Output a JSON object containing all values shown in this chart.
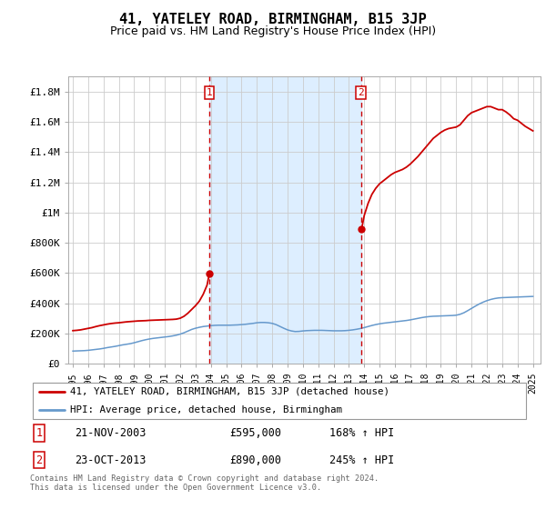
{
  "title": "41, YATELEY ROAD, BIRMINGHAM, B15 3JP",
  "subtitle": "Price paid vs. HM Land Registry's House Price Index (HPI)",
  "title_fontsize": 11,
  "subtitle_fontsize": 9,
  "bg_color": "#ffffff",
  "plot_bg_color": "#ffffff",
  "grid_color": "#cccccc",
  "shade_color": "#ddeeff",
  "red_line_color": "#cc0000",
  "blue_line_color": "#6699cc",
  "vline_color": "#cc0000",
  "ylim": [
    0,
    1900000
  ],
  "yticks": [
    0,
    200000,
    400000,
    600000,
    800000,
    1000000,
    1200000,
    1400000,
    1600000,
    1800000
  ],
  "ytick_labels": [
    "£0",
    "£200K",
    "£400K",
    "£600K",
    "£800K",
    "£1M",
    "£1.2M",
    "£1.4M",
    "£1.6M",
    "£1.8M"
  ],
  "xlim_start": 1994.7,
  "xlim_end": 2025.5,
  "xtick_years": [
    1995,
    1996,
    1997,
    1998,
    1999,
    2000,
    2001,
    2002,
    2003,
    2004,
    2005,
    2006,
    2007,
    2008,
    2009,
    2010,
    2011,
    2012,
    2013,
    2014,
    2015,
    2016,
    2017,
    2018,
    2019,
    2020,
    2021,
    2022,
    2023,
    2024,
    2025
  ],
  "vline1_x": 2003.9,
  "vline2_x": 2013.8,
  "marker1_label": "1",
  "marker2_label": "2",
  "legend_entry1": "41, YATELEY ROAD, BIRMINGHAM, B15 3JP (detached house)",
  "legend_entry2": "HPI: Average price, detached house, Birmingham",
  "table_row1": [
    "1",
    "21-NOV-2003",
    "£595,000",
    "168% ↑ HPI"
  ],
  "table_row2": [
    "2",
    "23-OCT-2013",
    "£890,000",
    "245% ↑ HPI"
  ],
  "footer": "Contains HM Land Registry data © Crown copyright and database right 2024.\nThis data is licensed under the Open Government Licence v3.0.",
  "hpi_x": [
    1995.0,
    1995.25,
    1995.5,
    1995.75,
    1996.0,
    1996.25,
    1996.5,
    1996.75,
    1997.0,
    1997.25,
    1997.5,
    1997.75,
    1998.0,
    1998.25,
    1998.5,
    1998.75,
    1999.0,
    1999.25,
    1999.5,
    1999.75,
    2000.0,
    2000.25,
    2000.5,
    2000.75,
    2001.0,
    2001.25,
    2001.5,
    2001.75,
    2002.0,
    2002.25,
    2002.5,
    2002.75,
    2003.0,
    2003.25,
    2003.5,
    2003.75,
    2004.0,
    2004.25,
    2004.5,
    2004.75,
    2005.0,
    2005.25,
    2005.5,
    2005.75,
    2006.0,
    2006.25,
    2006.5,
    2006.75,
    2007.0,
    2007.25,
    2007.5,
    2007.75,
    2008.0,
    2008.25,
    2008.5,
    2008.75,
    2009.0,
    2009.25,
    2009.5,
    2009.75,
    2010.0,
    2010.25,
    2010.5,
    2010.75,
    2011.0,
    2011.25,
    2011.5,
    2011.75,
    2012.0,
    2012.25,
    2012.5,
    2012.75,
    2013.0,
    2013.25,
    2013.5,
    2013.75,
    2014.0,
    2014.25,
    2014.5,
    2014.75,
    2015.0,
    2015.25,
    2015.5,
    2015.75,
    2016.0,
    2016.25,
    2016.5,
    2016.75,
    2017.0,
    2017.25,
    2017.5,
    2017.75,
    2018.0,
    2018.25,
    2018.5,
    2018.75,
    2019.0,
    2019.25,
    2019.5,
    2019.75,
    2020.0,
    2020.25,
    2020.5,
    2020.75,
    2021.0,
    2021.25,
    2021.5,
    2021.75,
    2022.0,
    2022.25,
    2022.5,
    2022.75,
    2023.0,
    2023.25,
    2023.5,
    2023.75,
    2024.0,
    2024.25,
    2024.5,
    2024.75,
    2025.0
  ],
  "hpi_y": [
    85000,
    86000,
    87000,
    88000,
    90000,
    93000,
    96000,
    99000,
    103000,
    108000,
    112000,
    116000,
    121000,
    126000,
    130000,
    134000,
    140000,
    147000,
    154000,
    160000,
    165000,
    169000,
    172000,
    175000,
    178000,
    181000,
    185000,
    190000,
    197000,
    206000,
    217000,
    228000,
    236000,
    242000,
    247000,
    250000,
    253000,
    255000,
    256000,
    256000,
    256000,
    256000,
    257000,
    258000,
    260000,
    262000,
    265000,
    268000,
    272000,
    274000,
    274000,
    272000,
    268000,
    260000,
    248000,
    236000,
    225000,
    218000,
    214000,
    215000,
    218000,
    220000,
    221000,
    222000,
    222000,
    222000,
    221000,
    220000,
    219000,
    219000,
    219000,
    220000,
    222000,
    225000,
    229000,
    234000,
    240000,
    247000,
    254000,
    260000,
    265000,
    269000,
    272000,
    275000,
    278000,
    281000,
    284000,
    287000,
    291000,
    296000,
    301000,
    306000,
    310000,
    313000,
    315000,
    316000,
    317000,
    318000,
    319000,
    320000,
    322000,
    328000,
    338000,
    352000,
    367000,
    382000,
    396000,
    408000,
    418000,
    426000,
    432000,
    436000,
    438000,
    439000,
    440000,
    441000,
    442000,
    443000,
    444000,
    445000,
    446000
  ],
  "red_seg1_x": [
    1995.0,
    1995.25,
    1995.5,
    1995.75,
    1996.0,
    1996.25,
    1996.5,
    1996.75,
    1997.0,
    1997.25,
    1997.5,
    1997.75,
    1998.0,
    1998.25,
    1998.5,
    1998.75,
    1999.0,
    1999.25,
    1999.5,
    1999.75,
    2000.0,
    2000.25,
    2000.5,
    2000.75,
    2001.0,
    2001.25,
    2001.5,
    2001.75,
    2002.0,
    2002.25,
    2002.5,
    2002.75,
    2003.0,
    2003.25,
    2003.5,
    2003.75,
    2003.9
  ],
  "red_seg1_y": [
    220000,
    222000,
    225000,
    230000,
    235000,
    240000,
    247000,
    253000,
    258000,
    263000,
    267000,
    270000,
    272000,
    275000,
    278000,
    280000,
    282000,
    284000,
    285000,
    286000,
    288000,
    289000,
    290000,
    291000,
    292000,
    293000,
    294000,
    296000,
    302000,
    315000,
    335000,
    360000,
    385000,
    415000,
    460000,
    520000,
    595000
  ],
  "red_seg2_x": [
    2013.83,
    2014.0,
    2014.25,
    2014.5,
    2014.75,
    2015.0,
    2015.25,
    2015.5,
    2015.75,
    2016.0,
    2016.25,
    2016.5,
    2016.75,
    2017.0,
    2017.25,
    2017.5,
    2017.75,
    2018.0,
    2018.25,
    2018.5,
    2018.75,
    2019.0,
    2019.25,
    2019.5,
    2019.75,
    2020.0,
    2020.25,
    2020.5,
    2020.75,
    2021.0,
    2021.25,
    2021.5,
    2021.75,
    2022.0,
    2022.25,
    2022.5,
    2022.75,
    2023.0,
    2023.25,
    2023.5,
    2023.75,
    2024.0,
    2024.25,
    2024.5,
    2024.75,
    2025.0
  ],
  "red_seg2_y": [
    890000,
    980000,
    1060000,
    1120000,
    1160000,
    1190000,
    1210000,
    1230000,
    1250000,
    1265000,
    1275000,
    1285000,
    1300000,
    1320000,
    1345000,
    1370000,
    1400000,
    1430000,
    1460000,
    1490000,
    1510000,
    1530000,
    1545000,
    1555000,
    1560000,
    1565000,
    1580000,
    1610000,
    1640000,
    1660000,
    1670000,
    1680000,
    1690000,
    1700000,
    1700000,
    1690000,
    1680000,
    1680000,
    1665000,
    1645000,
    1620000,
    1610000,
    1590000,
    1570000,
    1555000,
    1540000
  ]
}
